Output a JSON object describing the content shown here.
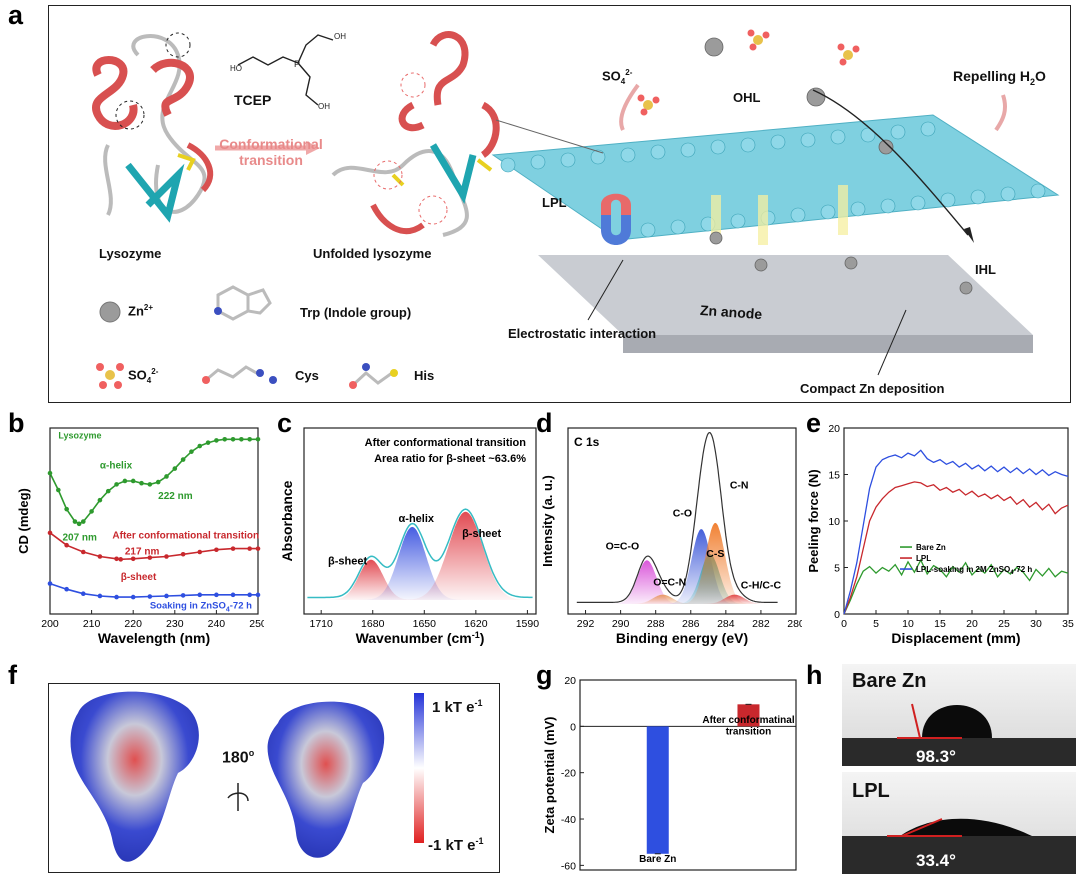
{
  "panels": {
    "a": {
      "label": "a",
      "lysozyme": "Lysozyme",
      "unfolded": "Unfolded lysozyme",
      "tcep": "TCEP",
      "transition": "Conformational transition",
      "zn_label": "Zn",
      "zn_sup": "2+",
      "trp": "Trp (Indole group)",
      "so4_label": "SO",
      "so4_sub": "4",
      "so4_sup": "2-",
      "cys": "Cys",
      "his": "His",
      "lpl": "LPL",
      "ohl": "OHL",
      "ihl": "IHL",
      "repelling": "Repelling H",
      "repelling_sub": "2",
      "repelling_end": "O",
      "zn_anode": "Zn anode",
      "electrostatic": "Electrostatic interaction",
      "compact": "Compact Zn deposition"
    },
    "b": {
      "label": "b"
    },
    "c": {
      "label": "c"
    },
    "d": {
      "label": "d"
    },
    "e": {
      "label": "e"
    },
    "f": {
      "label": "f",
      "rotation": "180",
      "rotation_unit": "o",
      "scale_max": "1 kT e",
      "scale_min": "-1 kT e",
      "scale_sup": "-1"
    },
    "g": {
      "label": "g"
    },
    "h": {
      "label": "h",
      "top_label": "Bare Zn",
      "top_angle": "98.3°",
      "bottom_label": "LPL",
      "bottom_angle": "33.4°"
    }
  },
  "chart_data": [
    {
      "id": "b",
      "type": "line",
      "xlabel": "Wavelength (nm)",
      "ylabel": "CD (mdeg)",
      "xlim": [
        200,
        250
      ],
      "xticks": [
        200,
        210,
        220,
        230,
        240,
        250
      ],
      "series": [
        {
          "name": "Lysozyme",
          "color": "#2e9a2e",
          "x": [
            200,
            202,
            204,
            206,
            207,
            208,
            210,
            212,
            214,
            216,
            218,
            220,
            222,
            224,
            226,
            228,
            230,
            232,
            234,
            236,
            238,
            240,
            242,
            244,
            246,
            248,
            250
          ],
          "y": [
            0.7,
            0.55,
            0.38,
            0.27,
            0.25,
            0.27,
            0.36,
            0.46,
            0.54,
            0.6,
            0.63,
            0.63,
            0.61,
            0.6,
            0.62,
            0.67,
            0.74,
            0.82,
            0.89,
            0.94,
            0.97,
            0.99,
            1.0,
            1.0,
            1.0,
            1.0,
            1.0
          ]
        },
        {
          "name": "After conformational transition",
          "color": "#c8282d",
          "x": [
            200,
            204,
            208,
            212,
            216,
            217,
            220,
            224,
            228,
            232,
            236,
            240,
            244,
            248,
            250
          ],
          "y": [
            0.17,
            0.06,
            0.0,
            -0.04,
            -0.06,
            -0.065,
            -0.06,
            -0.05,
            -0.04,
            -0.02,
            0.0,
            0.02,
            0.03,
            0.03,
            0.03
          ]
        },
        {
          "name": "Soaking in ZnSO4-72 h",
          "color": "#2e4fe0",
          "x": [
            200,
            204,
            208,
            212,
            216,
            220,
            224,
            228,
            232,
            236,
            240,
            244,
            248,
            250
          ],
          "y": [
            -0.28,
            -0.33,
            -0.37,
            -0.39,
            -0.4,
            -0.4,
            -0.395,
            -0.39,
            -0.385,
            -0.38,
            -0.38,
            -0.38,
            -0.38,
            -0.38
          ]
        }
      ],
      "annotations": [
        "Lysozyme",
        "α-helix",
        "222 nm",
        "207 nm",
        "After conformational transition",
        "217 nm",
        "β-sheet",
        "Soaking in ZnSO",
        "4",
        "-72 h"
      ]
    },
    {
      "id": "c",
      "type": "area",
      "xlabel": "Wavenumber (cm",
      "xlabel_sup": "-1",
      "xlabel_end": ")",
      "ylabel": "Absorbance",
      "xlim": [
        1720,
        1585
      ],
      "xticks": [
        1710,
        1680,
        1650,
        1620,
        1590
      ],
      "title": "After conformational transition",
      "subtitle": "Area ratio for β-sheet ~63.6%",
      "peaks": [
        {
          "name": "β-sheet",
          "center": 1681,
          "height": 0.32,
          "width": 7,
          "color": "#e0424a"
        },
        {
          "name": "α-helix",
          "center": 1657,
          "height": 0.58,
          "width": 8,
          "color": "#3d55e0"
        },
        {
          "name": "β-sheet",
          "center": 1626,
          "height": 0.7,
          "width": 10,
          "color": "#e0424a"
        }
      ],
      "envelope_color": "#36bcc4"
    },
    {
      "id": "d",
      "type": "line",
      "title": "C 1s",
      "xlabel": "Binding energy (eV)",
      "ylabel": "Intensity (a. u.)",
      "xlim": [
        293,
        280
      ],
      "xticks": [
        292,
        290,
        288,
        286,
        284,
        282,
        280
      ],
      "peaks": [
        {
          "name": "O=C-O",
          "center": 288.5,
          "height": 0.28,
          "color": "#d84fd8"
        },
        {
          "name": "O=C-N",
          "center": 287.6,
          "height": 0.06,
          "color": "#e8955a"
        },
        {
          "name": "C-O",
          "center": 285.4,
          "height": 0.48,
          "color": "#3b57d8"
        },
        {
          "name": "C-S",
          "center": 284.9,
          "height": 0.32,
          "color": "#2fa6a0"
        },
        {
          "name": "C-N",
          "center": 284.6,
          "height": 0.52,
          "color": "#f07a28"
        },
        {
          "name": "C-H/C-C",
          "center": 283.5,
          "height": 0.06,
          "color": "#e04040"
        }
      ]
    },
    {
      "id": "e",
      "type": "line",
      "xlabel": "Displacement (mm)",
      "ylabel": "Peeling force (N)",
      "xlim": [
        0,
        35
      ],
      "ylim": [
        0,
        20
      ],
      "xticks": [
        0,
        5,
        10,
        15,
        20,
        25,
        30,
        35
      ],
      "yticks": [
        0,
        5,
        10,
        15,
        20
      ],
      "series": [
        {
          "name": "Bare Zn",
          "color": "#2e9a2e",
          "x": [
            0,
            1,
            2,
            3,
            4,
            5,
            6,
            7,
            8,
            9,
            10,
            11,
            12,
            13,
            14,
            15,
            16,
            17,
            18,
            19,
            20,
            21,
            22,
            23,
            24,
            25,
            26,
            27,
            28,
            29,
            30,
            31,
            32,
            33,
            34,
            35
          ],
          "y": [
            0,
            1.5,
            3.2,
            4.6,
            5.1,
            4.4,
            5.0,
            4.6,
            5.3,
            4.2,
            5.6,
            4.5,
            5.8,
            4.3,
            5.2,
            4.8,
            4.0,
            5.1,
            4.5,
            5.5,
            4.2,
            4.9,
            4.4,
            5.3,
            4.0,
            4.8,
            4.3,
            5.0,
            4.5,
            3.6,
            4.8,
            4.1,
            4.9,
            4.0,
            4.6,
            4.4
          ]
        },
        {
          "name": "LPL",
          "color": "#c8282d",
          "x": [
            0,
            1,
            2,
            3,
            4,
            5,
            6,
            7,
            8,
            9,
            10,
            11,
            12,
            13,
            14,
            15,
            16,
            17,
            18,
            19,
            20,
            21,
            22,
            23,
            24,
            25,
            26,
            27,
            28,
            29,
            30,
            31,
            32,
            33,
            34,
            35
          ],
          "y": [
            0,
            1.8,
            4.0,
            7.0,
            10.0,
            11.5,
            12.4,
            13.1,
            13.6,
            13.8,
            14.0,
            14.2,
            14.1,
            13.7,
            13.9,
            13.3,
            13.6,
            13.1,
            13.4,
            12.8,
            13.2,
            12.6,
            12.9,
            12.4,
            12.8,
            12.2,
            12.6,
            11.8,
            12.3,
            11.5,
            12.0,
            11.2,
            11.8,
            10.8,
            11.4,
            11.7
          ]
        },
        {
          "name": "LPL-soaking in 2M ZnSO4-72 h",
          "color": "#2e4fe0",
          "x": [
            0,
            1,
            2,
            3,
            4,
            5,
            6,
            7,
            8,
            9,
            10,
            11,
            12,
            13,
            14,
            15,
            16,
            17,
            18,
            19,
            20,
            21,
            22,
            23,
            24,
            25,
            26,
            27,
            28,
            29,
            30,
            31,
            32,
            33,
            34,
            35
          ],
          "y": [
            0,
            2.5,
            5.5,
            9.5,
            13.5,
            15.8,
            16.6,
            16.9,
            17.1,
            16.8,
            17.3,
            17.0,
            17.6,
            16.7,
            16.3,
            16.6,
            16.1,
            16.4,
            15.8,
            16.2,
            15.6,
            16.0,
            15.4,
            15.9,
            15.3,
            15.8,
            15.2,
            15.7,
            15.1,
            15.6,
            15.0,
            15.5,
            14.9,
            15.3,
            15.0,
            14.8
          ]
        }
      ],
      "legend": [
        "Bare Zn",
        "LPL",
        "LPL-soaking in 2M ZnSO",
        "4",
        "-72 h"
      ]
    },
    {
      "id": "g",
      "type": "bar",
      "ylabel": "Zeta potential (mV)",
      "ylim": [
        -62,
        20
      ],
      "yticks": [
        -60,
        -40,
        -20,
        0,
        20
      ],
      "categories": [
        "Bare Zn",
        "After conformatinal transition"
      ],
      "category_labels": [
        "Bare Zn",
        "After conformatinal",
        "transition"
      ],
      "values": [
        -55,
        9.5
      ],
      "colors": [
        "#2e4fe0",
        "#c8282d"
      ]
    }
  ]
}
